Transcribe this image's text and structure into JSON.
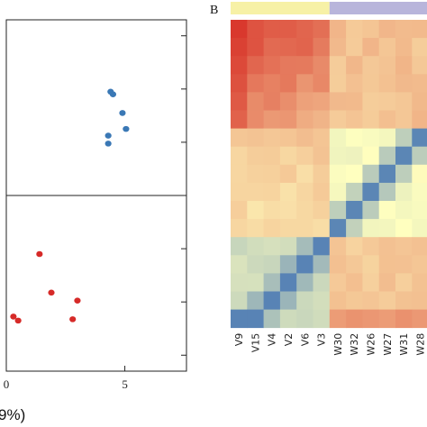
{
  "figure": {
    "panel_b_label": "B"
  },
  "chart_data": [
    {
      "type": "scatter",
      "xlabel_fragment": "9%)",
      "xlim": [
        0,
        7.6
      ],
      "ylim": [
        -6.6,
        6.6
      ],
      "x_ticks": [
        0,
        5
      ],
      "x_tick_labels": [
        "0",
        "5"
      ],
      "y_ticks": [
        -6,
        -4,
        -2,
        2,
        4,
        6
      ],
      "reference_lines": {
        "x": 0,
        "y": 0
      },
      "series": [
        {
          "color": "#3a78b5",
          "points": [
            {
              "x": 4.4,
              "y": 3.9
            },
            {
              "x": 4.5,
              "y": 3.8
            },
            {
              "x": 4.9,
              "y": 3.1
            },
            {
              "x": 5.05,
              "y": 2.5
            },
            {
              "x": 4.3,
              "y": 2.25
            },
            {
              "x": 4.3,
              "y": 1.95
            }
          ]
        },
        {
          "color": "#d62a28",
          "points": [
            {
              "x": 1.4,
              "y": -2.2
            },
            {
              "x": 1.9,
              "y": -3.65
            },
            {
              "x": 3.0,
              "y": -3.95
            },
            {
              "x": 0.3,
              "y": -4.55
            },
            {
              "x": 0.5,
              "y": -4.7
            },
            {
              "x": 2.8,
              "y": -4.65
            }
          ]
        }
      ]
    },
    {
      "type": "heatmap",
      "columns": [
        "V9",
        "V15",
        "V4",
        "V2",
        "V6",
        "V3",
        "W30",
        "W32",
        "W26",
        "W27",
        "W31",
        "W28"
      ],
      "top_bar_groups": [
        {
          "color": "#f7f1a6",
          "span": 6
        },
        {
          "color": "#b8b5db",
          "span": 6
        }
      ],
      "color_scale": {
        "low": "#4575b4",
        "mid": "#ffffbf",
        "high": "#d73027"
      },
      "grid_size": [
        12,
        17
      ]
    }
  ]
}
